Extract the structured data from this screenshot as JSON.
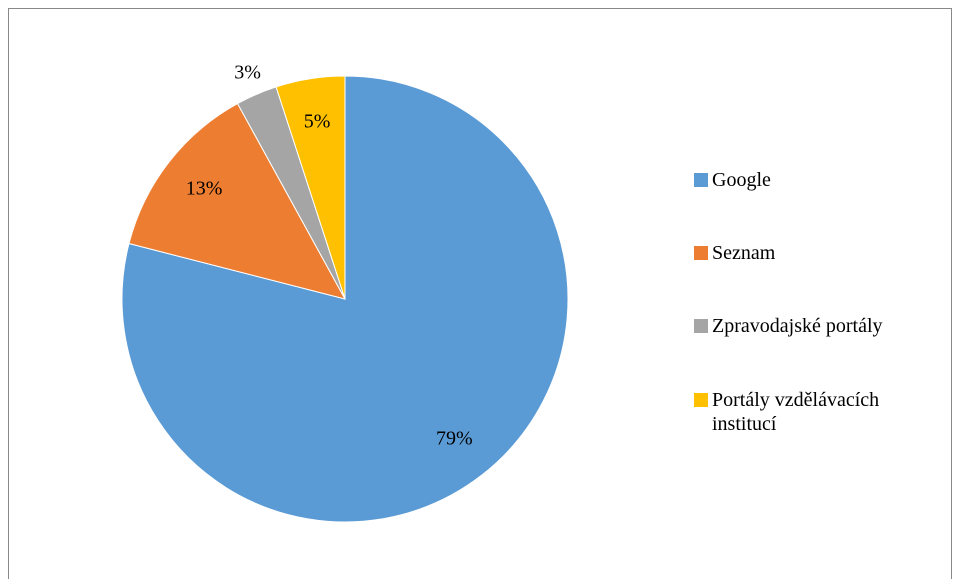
{
  "chart_data": {
    "type": "pie",
    "categories": [
      "Google",
      "Seznam",
      "Zpravodajské portály",
      "Portály vzdělávacích institucí"
    ],
    "values": [
      79,
      13,
      3,
      5
    ],
    "value_labels": [
      "79%",
      "13%",
      "3%",
      "5%"
    ],
    "colors": [
      "#5b9bd5",
      "#ed7d31",
      "#a5a5a5",
      "#ffc000"
    ],
    "legend": "right"
  }
}
